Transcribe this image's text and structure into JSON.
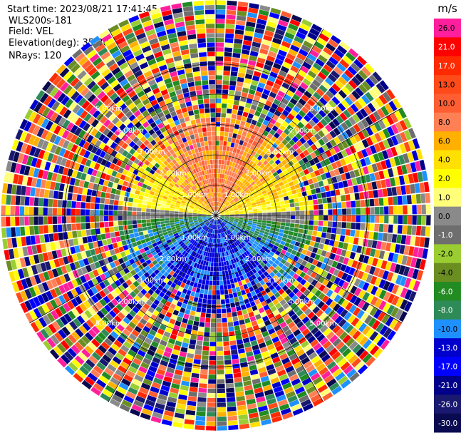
{
  "header": {
    "start_time": "Start time: 2023/08/21 17:41:45",
    "instrument": "WLS200s-181",
    "field": "Field: VEL",
    "elevation": "Elevation(deg): 35.30",
    "nrays": "NRays: 120"
  },
  "chart_data": {
    "type": "heatmap",
    "projection": "polar",
    "field": "VEL",
    "rays": 120,
    "unit": "m/s",
    "range_rings_km": [
      1,
      2,
      3,
      4,
      5
    ],
    "ring_labels": [
      "1.00km",
      "2.00km",
      "3.00km",
      "4.00km",
      "5.00km"
    ],
    "colorbar": {
      "unit": "m/s",
      "levels": [
        {
          "label": "26.0",
          "color": "#ff1f9c"
        },
        {
          "label": "21.0",
          "color": "#ff0000"
        },
        {
          "label": "17.0",
          "color": "#ff2a00"
        },
        {
          "label": "13.0",
          "color": "#ff4a1a"
        },
        {
          "label": "10.0",
          "color": "#ff5e33"
        },
        {
          "label": "8.0",
          "color": "#ff8055"
        },
        {
          "label": "6.0",
          "color": "#ffb000"
        },
        {
          "label": "4.0",
          "color": "#ffe000"
        },
        {
          "label": "2.0",
          "color": "#ffff00"
        },
        {
          "label": "1.0",
          "color": "#ffff7a"
        },
        {
          "label": "0.0",
          "color": "#8a8a8a"
        },
        {
          "label": "-1.0",
          "color": "#6e6e6e"
        },
        {
          "label": "-2.0",
          "color": "#9acd32"
        },
        {
          "label": "-4.0",
          "color": "#6b8e23"
        },
        {
          "label": "-6.0",
          "color": "#228b22"
        },
        {
          "label": "-8.0",
          "color": "#2e8b57"
        },
        {
          "label": "-10.0",
          "color": "#1e90ff"
        },
        {
          "label": "-13.0",
          "color": "#0000cd"
        },
        {
          "label": "-17.0",
          "color": "#0000ff"
        },
        {
          "label": "-21.0",
          "color": "#00008b"
        },
        {
          "label": "-26.0",
          "color": "#191970"
        },
        {
          "label": "-30.0",
          "color": "#0a0a50"
        }
      ]
    }
  }
}
